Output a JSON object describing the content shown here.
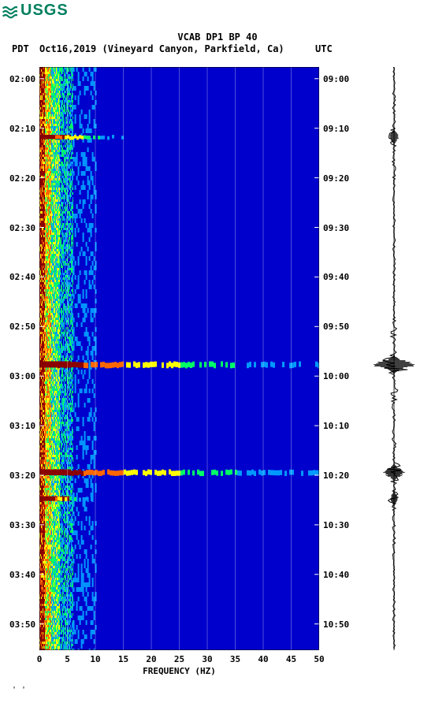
{
  "logo": {
    "text": "USGS",
    "color": "#007f5f"
  },
  "header": {
    "title": "VCAB DP1 BP 40",
    "pdt": "PDT",
    "date": "Oct16,2019 (Vineyard Canyon, Parkfield, Ca)",
    "utc": "UTC"
  },
  "spectrogram": {
    "type": "spectrogram",
    "xlim": [
      0,
      50
    ],
    "xlabel": "FREQUENCY (HZ)",
    "xticks": [
      0,
      5,
      10,
      15,
      20,
      25,
      30,
      35,
      40,
      45,
      50
    ],
    "background_color": "#0000cc",
    "gridline_color": "#ffffff",
    "left_time_labels": [
      "02:00",
      "02:10",
      "02:20",
      "02:30",
      "02:40",
      "02:50",
      "03:00",
      "03:10",
      "03:20",
      "03:30",
      "03:40",
      "03:50"
    ],
    "right_time_labels": [
      "09:00",
      "09:10",
      "09:20",
      "09:30",
      "09:40",
      "09:50",
      "10:00",
      "10:10",
      "10:20",
      "10:30",
      "10:40",
      "10:50"
    ],
    "time_positions": [
      0.02,
      0.105,
      0.19,
      0.275,
      0.36,
      0.445,
      0.53,
      0.615,
      0.7,
      0.785,
      0.87,
      0.955
    ],
    "colormap": {
      "low": "#0000cc",
      "mid_low": "#0099ff",
      "mid": "#00ff66",
      "mid_high": "#ffff00",
      "high": "#ff6600",
      "peak": "#8b0000"
    },
    "low_freq_band_end": 6,
    "events": [
      {
        "time_frac": 0.12,
        "intensity": 0.4,
        "freq_extent": 15
      },
      {
        "time_frac": 0.51,
        "intensity": 1.0,
        "freq_extent": 50
      },
      {
        "time_frac": 0.695,
        "intensity": 0.9,
        "freq_extent": 50
      },
      {
        "time_frac": 0.74,
        "intensity": 0.5,
        "freq_extent": 10
      }
    ]
  },
  "seismogram": {
    "type": "waveform",
    "trace_color": "#000000",
    "baseline_width": 2,
    "events": [
      {
        "time_frac": 0.12,
        "amplitude": 0.25
      },
      {
        "time_frac": 0.51,
        "amplitude": 1.0
      },
      {
        "time_frac": 0.695,
        "amplitude": 0.55
      },
      {
        "time_frac": 0.74,
        "amplitude": 0.2
      }
    ]
  },
  "footer": "' '"
}
